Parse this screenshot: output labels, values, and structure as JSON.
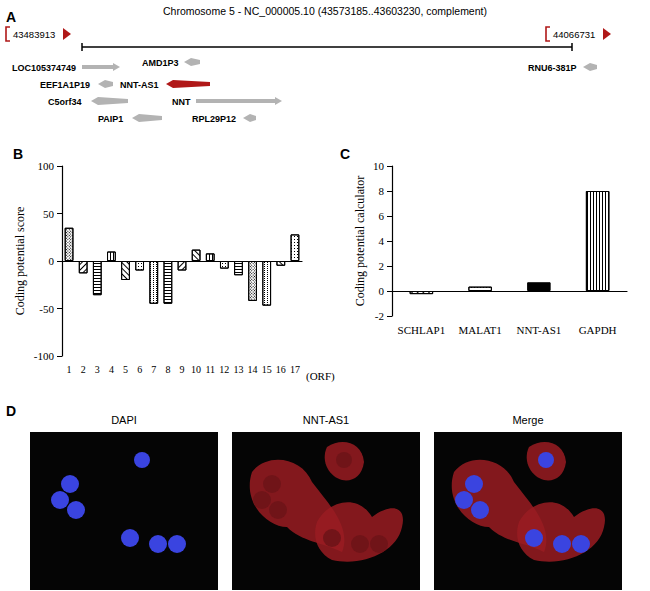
{
  "panel_a": {
    "label": "A",
    "title": "Chromosome 5 - NC_000005.10 (43573185..43603230, complement)",
    "range_start": 43483913,
    "range_end": 44066731,
    "genes": [
      {
        "name": "LOC105374749",
        "direction": "right",
        "color": "#b3b3b3"
      },
      {
        "name": "AMD1P3",
        "direction": "left",
        "color": "#b3b3b3"
      },
      {
        "name": "EEF1A1P19",
        "direction": "left",
        "color": "#b3b3b3"
      },
      {
        "name": "NNT-AS1",
        "direction": "left",
        "color": "#b01818"
      },
      {
        "name": "C5orf34",
        "direction": "left",
        "color": "#b3b3b3"
      },
      {
        "name": "NNT",
        "direction": "right",
        "color": "#b3b3b3"
      },
      {
        "name": "PAIP1",
        "direction": "left",
        "color": "#b3b3b3"
      },
      {
        "name": "RPL29P12",
        "direction": "left",
        "color": "#b3b3b3"
      },
      {
        "name": "RNU6-381P",
        "direction": "left",
        "color": "#b3b3b3"
      }
    ]
  },
  "chart_data": [
    {
      "title": "B",
      "type": "bar",
      "categories": [
        "1",
        "2",
        "3",
        "4",
        "5",
        "6",
        "7",
        "8",
        "9",
        "10",
        "11",
        "12",
        "13",
        "14",
        "15",
        "16",
        "17"
      ],
      "values": [
        35,
        -13,
        -36,
        10,
        -20,
        -10,
        -45,
        -45,
        -10,
        12,
        8,
        -8,
        -15,
        -42,
        -47,
        -5,
        28
      ],
      "xlabel": "(ORF)",
      "ylabel": "Coding potential score",
      "ylim": [
        -100,
        100
      ],
      "yticks": [
        -100,
        -50,
        0,
        50,
        100
      ],
      "color": "#000000",
      "grid": false
    },
    {
      "title": "C",
      "type": "bar",
      "categories": [
        "SCHLAP1",
        "MALAT1",
        "NNT-AS1",
        "GAPDH"
      ],
      "values": [
        -0.25,
        0.35,
        0.7,
        8
      ],
      "ylabel": "Coding potential calculator",
      "ylim": [
        -2,
        10
      ],
      "yticks": [
        -2,
        0,
        2,
        4,
        6,
        8,
        10
      ],
      "color": "#000000",
      "grid": false
    }
  ],
  "panel_d": {
    "label": "D",
    "images": [
      "DAPI",
      "NNT-AS1",
      "Merge"
    ]
  }
}
